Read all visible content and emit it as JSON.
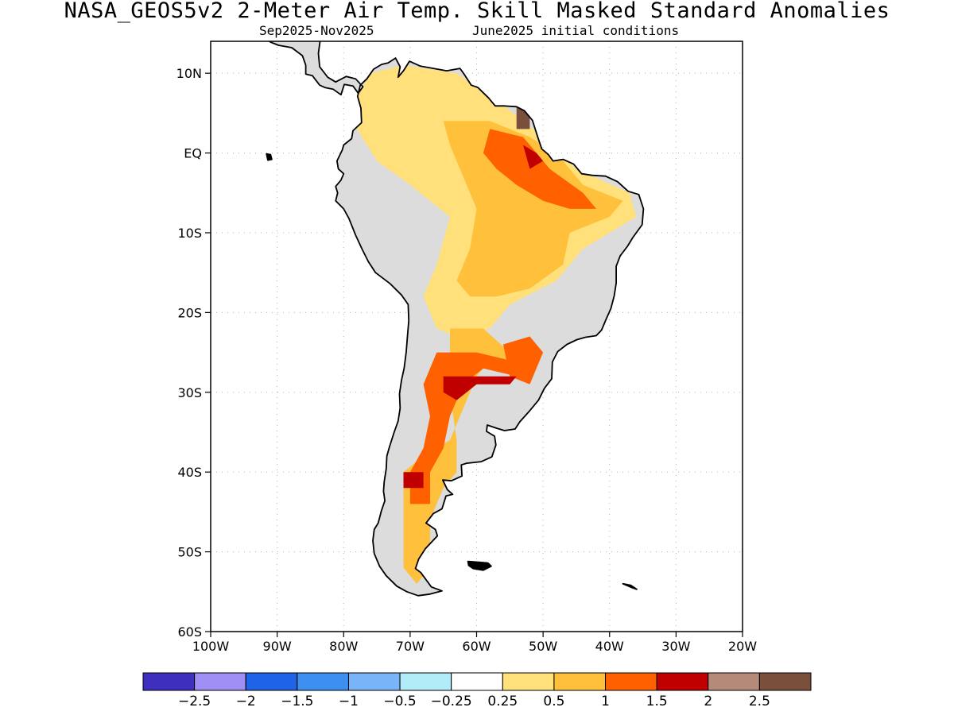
{
  "title": "NASA_GEOS5v2 2-Meter Air Temp. Skill Masked Standard Anomalies",
  "subtitle_left": "Sep2025-Nov2025",
  "subtitle_right": "June2025 initial conditions",
  "map": {
    "lon_range": [
      -100,
      -20
    ],
    "lat_range": [
      -60,
      14
    ],
    "lat_ticks": [
      {
        "value": 10,
        "label": "10N"
      },
      {
        "value": 0,
        "label": "EQ"
      },
      {
        "value": -10,
        "label": "10S"
      },
      {
        "value": -20,
        "label": "20S"
      },
      {
        "value": -30,
        "label": "30S"
      },
      {
        "value": -40,
        "label": "40S"
      },
      {
        "value": -50,
        "label": "50S"
      },
      {
        "value": -60,
        "label": "60S"
      }
    ],
    "lon_ticks": [
      {
        "value": -100,
        "label": "100W"
      },
      {
        "value": -90,
        "label": "90W"
      },
      {
        "value": -80,
        "label": "80W"
      },
      {
        "value": -70,
        "label": "70W"
      },
      {
        "value": -60,
        "label": "60W"
      },
      {
        "value": -50,
        "label": "50W"
      },
      {
        "value": -40,
        "label": "40W"
      },
      {
        "value": -30,
        "label": "30W"
      },
      {
        "value": -20,
        "label": "20W"
      }
    ],
    "masked_color": "#dcdcdc",
    "coast_color": "#000000"
  },
  "colorbar": {
    "colors": [
      "#3f2fbf",
      "#9f8ff5",
      "#1f63e6",
      "#3d8ff0",
      "#78b4f7",
      "#b3ecf9",
      "#ffffff",
      "#ffe07a",
      "#ffc03c",
      "#ff6000",
      "#c00000",
      "#b48a78",
      "#7a4f3c"
    ],
    "labels": [
      "-2.5",
      "-2",
      "-1.5",
      "-1",
      "-0.5",
      "-0.25",
      "0.25",
      "0.5",
      "1",
      "1.5",
      "2",
      "2.5"
    ]
  },
  "anomaly_regions": [
    {
      "level": "0.5",
      "color": "#ffe07a",
      "lonlat": [
        [
          -76,
          10
        ],
        [
          -71,
          11
        ],
        [
          -63,
          10
        ],
        [
          -56,
          6
        ],
        [
          -50,
          2
        ],
        [
          -45,
          -2
        ],
        [
          -37,
          -5
        ],
        [
          -36,
          -8
        ],
        [
          -44,
          -12
        ],
        [
          -48,
          -16
        ],
        [
          -55,
          -19
        ],
        [
          -58,
          -22
        ],
        [
          -63,
          -23
        ],
        [
          -66,
          -22
        ],
        [
          -68,
          -18
        ],
        [
          -66,
          -14
        ],
        [
          -64,
          -8
        ],
        [
          -70,
          -4
        ],
        [
          -75,
          -1
        ],
        [
          -78,
          3
        ],
        [
          -78,
          7
        ]
      ]
    },
    {
      "level": "1",
      "color": "#ffc03c",
      "lonlat": [
        [
          -65,
          4
        ],
        [
          -58,
          4
        ],
        [
          -52,
          2
        ],
        [
          -48,
          0
        ],
        [
          -44,
          -4
        ],
        [
          -38,
          -6
        ],
        [
          -40,
          -8
        ],
        [
          -46,
          -10
        ],
        [
          -47,
          -14
        ],
        [
          -52,
          -17
        ],
        [
          -57,
          -18
        ],
        [
          -61,
          -18
        ],
        [
          -63,
          -16
        ],
        [
          -61,
          -12
        ],
        [
          -60,
          -7
        ],
        [
          -62,
          -3
        ],
        [
          -64,
          1
        ]
      ]
    },
    {
      "level": "1",
      "color": "#ffc03c",
      "lonlat": [
        [
          -64,
          -22
        ],
        [
          -59,
          -22
        ],
        [
          -55,
          -25
        ],
        [
          -54,
          -27
        ],
        [
          -58,
          -26
        ],
        [
          -60,
          -28
        ],
        [
          -62,
          -32
        ],
        [
          -64,
          -36
        ],
        [
          -68,
          -38
        ],
        [
          -71,
          -40
        ],
        [
          -71,
          -46
        ],
        [
          -71,
          -52
        ],
        [
          -69,
          -54
        ],
        [
          -67,
          -52
        ],
        [
          -67,
          -46
        ],
        [
          -65,
          -42
        ],
        [
          -63,
          -40
        ],
        [
          -63,
          -36
        ],
        [
          -64,
          -30
        ]
      ]
    },
    {
      "level": "1.5",
      "color": "#ff6000",
      "lonlat": [
        [
          -66,
          -25
        ],
        [
          -60,
          -25
        ],
        [
          -55,
          -26
        ],
        [
          -54,
          -28
        ],
        [
          -59,
          -27
        ],
        [
          -62,
          -29
        ],
        [
          -64,
          -33
        ],
        [
          -65,
          -37
        ],
        [
          -67,
          -40
        ],
        [
          -67,
          -44
        ],
        [
          -70,
          -44
        ],
        [
          -70,
          -40
        ],
        [
          -68,
          -37
        ],
        [
          -67,
          -33
        ],
        [
          -68,
          -29
        ]
      ]
    },
    {
      "level": "1.5",
      "color": "#ff6000",
      "lonlat": [
        [
          -58,
          3
        ],
        [
          -53,
          2
        ],
        [
          -49,
          -2
        ],
        [
          -44,
          -5
        ],
        [
          -42,
          -7
        ],
        [
          -46,
          -7
        ],
        [
          -50,
          -6
        ],
        [
          -54,
          -4
        ],
        [
          -57,
          -2
        ],
        [
          -59,
          0
        ]
      ]
    },
    {
      "level": "1.5",
      "color": "#ff6000",
      "lonlat": [
        [
          -56,
          -24
        ],
        [
          -52,
          -23
        ],
        [
          -50,
          -25
        ],
        [
          -52,
          -29
        ],
        [
          -55,
          -28
        ]
      ]
    },
    {
      "level": "2",
      "color": "#c00000",
      "lonlat": [
        [
          -65,
          -28
        ],
        [
          -60,
          -28
        ],
        [
          -54,
          -28
        ],
        [
          -55,
          -29
        ],
        [
          -60,
          -29
        ],
        [
          -63,
          -31
        ],
        [
          -65,
          -30
        ]
      ]
    },
    {
      "level": "2",
      "color": "#c00000",
      "lonlat": [
        [
          -71,
          -40
        ],
        [
          -68,
          -40
        ],
        [
          -68,
          -42
        ],
        [
          -71,
          -42
        ]
      ]
    },
    {
      "level": "2",
      "color": "#c00000",
      "lonlat": [
        [
          -53,
          1
        ],
        [
          -51,
          0
        ],
        [
          -50,
          -1
        ],
        [
          -52,
          -2
        ]
      ]
    },
    {
      "level": "2.5",
      "color": "#7a4f3c",
      "lonlat": [
        [
          -54,
          6
        ],
        [
          -52,
          6
        ],
        [
          -52,
          3
        ],
        [
          -54,
          3
        ]
      ]
    }
  ]
}
